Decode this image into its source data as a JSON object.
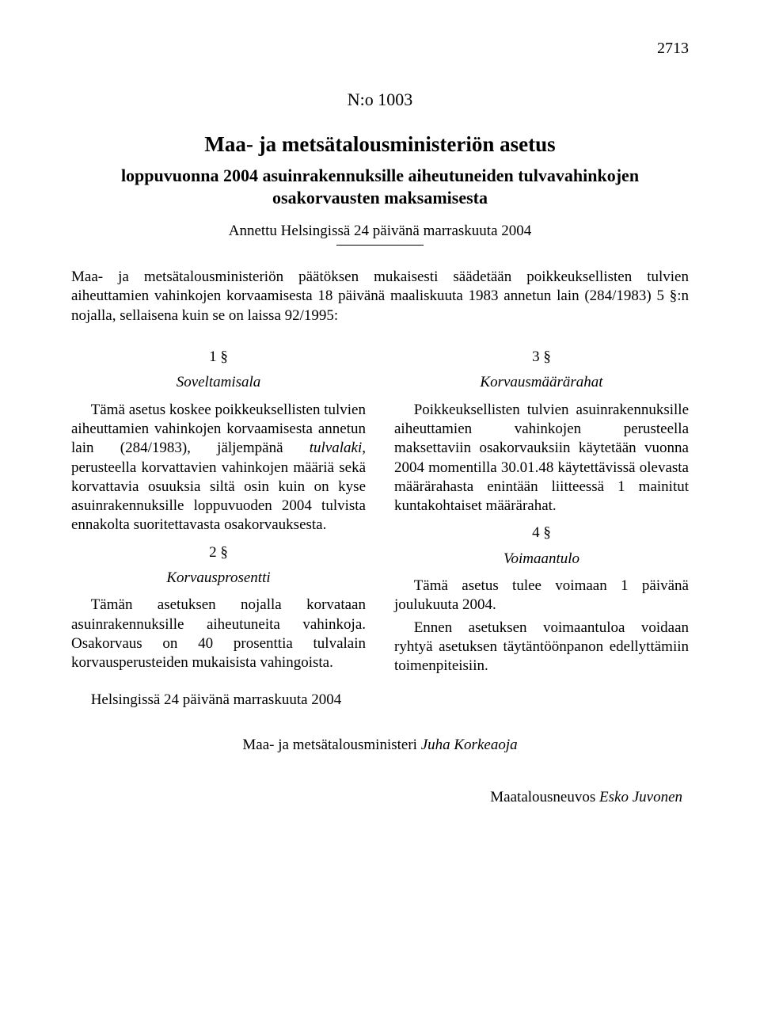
{
  "page_number": "2713",
  "doc_number": "N:o 1003",
  "title": "Maa- ja metsätalousministeriön asetus",
  "subtitle": "loppuvuonna 2004 asuinrakennuksille aiheutuneiden tulvavahinkojen osakorvausten maksamisesta",
  "given": "Annettu Helsingissä 24 päivänä marraskuuta 2004",
  "preamble": "Maa- ja metsätalousministeriön päätöksen mukaisesti säädetään poikkeuksellisten tulvien aiheuttamien vahinkojen korvaamisesta 18 päivänä maaliskuuta 1983 annetun lain (284/1983) 5 §:n nojalla, sellaisena kuin se on laissa 92/1995:",
  "sections": {
    "s1": {
      "num": "1 §",
      "head": "Soveltamisala",
      "p1a": "Tämä asetus koskee poikkeuksellisten tulvien aiheuttamien vahinkojen korvaamisesta annetun lain (284/1983), jäljempänä ",
      "p1_term": "tulvalaki",
      "p1b": ", perusteella korvattavien vahinkojen määriä sekä korvattavia osuuksia siltä osin kuin on kyse asuinrakennuksille loppuvuoden 2004 tulvista ennakolta suoritettavasta osakorvauksesta."
    },
    "s2": {
      "num": "2 §",
      "head": "Korvausprosentti",
      "p1": "Tämän asetuksen nojalla korvataan asuinrakennuksille aiheutuneita vahinkoja. Osakorvaus on 40 prosenttia tulvalain korvausperusteiden mukaisista vahingoista."
    },
    "s3": {
      "num": "3 §",
      "head": "Korvausmäärärahat",
      "p1": "Poikkeuksellisten tulvien asuinrakennuksille aiheuttamien vahinkojen perusteella maksettaviin osakorvauksiin käytetään vuonna 2004 momentilla 30.01.48 käytettävissä olevasta määrärahasta enintään liitteessä 1 mainitut kuntakohtaiset määrärahat."
    },
    "s4": {
      "num": "4 §",
      "head": "Voimaantulo",
      "p1": "Tämä asetus tulee voimaan 1 päivänä joulukuuta 2004.",
      "p2": "Ennen asetuksen voimaantuloa voidaan ryhtyä asetuksen täytäntöönpanon edellyttämiin toimenpiteisiin."
    }
  },
  "signed_place": "Helsingissä 24 päivänä marraskuuta 2004",
  "signature_role": "Maa- ja metsätalousministeri ",
  "signature_name": "Juha Korkeaoja",
  "countersign_role": "Maatalousneuvos ",
  "countersign_name": "Esko Juvonen"
}
